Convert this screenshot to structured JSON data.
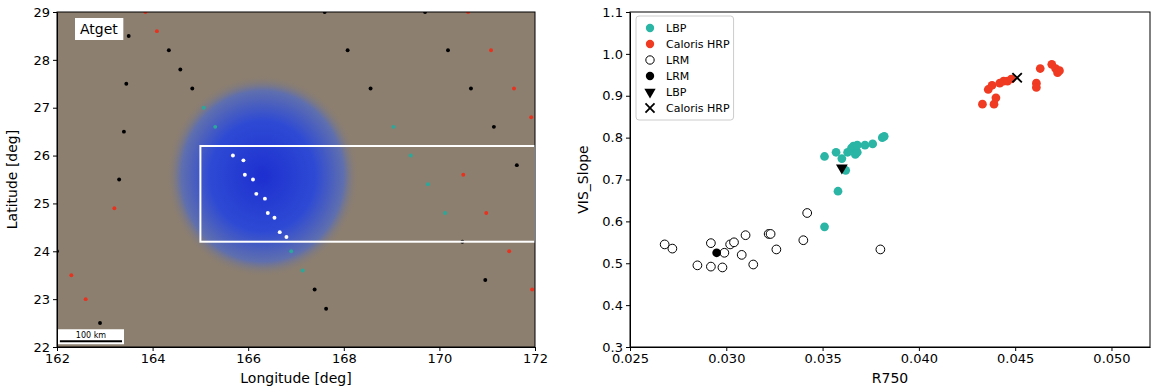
{
  "chart_data": [
    {
      "type": "scatter",
      "annotation": "Atget",
      "xlabel": "Longitude [deg]",
      "ylabel": "Latitude [deg]",
      "xlim": [
        162,
        172
      ],
      "ylim": [
        22,
        29
      ],
      "xticks": [
        162,
        164,
        166,
        168,
        170,
        172
      ],
      "yticks": [
        22,
        23,
        24,
        25,
        26,
        27,
        28,
        29
      ],
      "box": {
        "x": [
          165,
          172
        ],
        "y": [
          24.2,
          26.2
        ]
      },
      "scale_bar": {
        "label": "100 km",
        "x": [
          162.06,
          163.36
        ],
        "y": 22.12
      },
      "series": [
        {
          "color": "#e8321e",
          "marker": "circle",
          "x": [
            163.85,
            164.09,
            170.6,
            171.08,
            171.56,
            171.92,
            170.5,
            170.98,
            171.46,
            171.94,
            162.3,
            162.6,
            163.2
          ],
          "values": [
            29.0,
            28.6,
            29.0,
            28.2,
            27.4,
            26.8,
            25.6,
            24.8,
            24.0,
            23.2,
            23.5,
            23.0,
            24.9
          ]
        },
        {
          "color": "#000000",
          "marker": "circle",
          "x": [
            164.34,
            164.58,
            164.83,
            167.39,
            167.63,
            167.6,
            168.08,
            168.56,
            170.48,
            170.96,
            169.7,
            170.18,
            170.66,
            171.14,
            171.62,
            162.0,
            162.9,
            163.5,
            163.45,
            163.4,
            163.3
          ],
          "values": [
            28.2,
            27.8,
            27.4,
            23.2,
            22.8,
            29.0,
            28.2,
            27.4,
            24.2,
            23.4,
            29.0,
            28.2,
            27.4,
            26.6,
            25.8,
            24.0,
            22.5,
            28.5,
            27.5,
            26.5,
            25.5
          ]
        },
        {
          "color": "#2aa89a",
          "marker": "circle",
          "x": [
            165.07,
            165.31,
            166.9,
            167.14,
            169.04,
            169.4,
            169.76,
            170.12
          ],
          "values": [
            27.0,
            26.6,
            24.0,
            23.6,
            26.6,
            26.0,
            25.4,
            24.8
          ]
        },
        {
          "color": "#ffffff",
          "marker": "circle",
          "x": [
            165.68,
            165.93,
            166.17,
            166.41,
            166.66,
            165.9,
            166.1,
            166.35,
            166.55,
            166.8
          ],
          "values": [
            26.0,
            25.6,
            25.2,
            24.8,
            24.4,
            25.9,
            25.5,
            25.1,
            24.7,
            24.3
          ]
        }
      ]
    },
    {
      "type": "scatter",
      "xlabel": "R750",
      "ylabel": "VIS_Slope",
      "xlim": [
        0.025,
        0.052
      ],
      "ylim": [
        0.3,
        1.1
      ],
      "xticks": [
        0.025,
        {
          "value": 0.03,
          "label": "0.030"
        },
        0.035,
        {
          "value": 0.04,
          "label": "0.040"
        },
        0.045,
        {
          "value": 0.05,
          "label": "0.050"
        }
      ],
      "yticks": [
        0.3,
        0.4,
        0.5,
        0.6,
        0.7,
        0.8,
        0.9,
        {
          "value": 1,
          "label": "1.0"
        },
        1.1
      ],
      "legend": "upper left",
      "series": [
        {
          "name": "LBP",
          "color": "#2ab5a5",
          "marker": "circle",
          "x": [
            0.0351,
            0.0351,
            0.0357,
            0.0358,
            0.036,
            0.0362,
            0.0363,
            0.0365,
            0.0366,
            0.0367,
            0.0368,
            0.0368,
            0.0372,
            0.0376,
            0.0381,
            0.0382
          ],
          "values": [
            0.755,
            0.587,
            0.765,
            0.672,
            0.75,
            0.722,
            0.765,
            0.775,
            0.78,
            0.76,
            0.765,
            0.782,
            0.782,
            0.785,
            0.8,
            0.803
          ]
        },
        {
          "name": "Caloris HRP",
          "color": "#f03a22",
          "marker": "circle",
          "x": [
            0.0433,
            0.0436,
            0.0438,
            0.0439,
            0.044,
            0.0442,
            0.0444,
            0.0446,
            0.0448,
            0.0461,
            0.0461,
            0.0463,
            0.0469,
            0.0471,
            0.0472,
            0.0473
          ],
          "values": [
            0.88,
            0.915,
            0.925,
            0.88,
            0.895,
            0.93,
            0.935,
            0.935,
            0.94,
            0.93,
            0.92,
            0.965,
            0.975,
            0.965,
            0.955,
            0.96
          ]
        },
        {
          "name": "LRM",
          "color": "#000000",
          "marker": "open-circle",
          "x": [
            0.0268,
            0.0272,
            0.0285,
            0.0292,
            0.0292,
            0.0298,
            0.0299,
            0.0302,
            0.0304,
            0.0308,
            0.031,
            0.0314,
            0.0322,
            0.0323,
            0.0326,
            0.034,
            0.0342,
            0.038
          ],
          "values": [
            0.545,
            0.535,
            0.495,
            0.548,
            0.492,
            0.49,
            0.525,
            0.545,
            0.55,
            0.52,
            0.567,
            0.497,
            0.57,
            0.57,
            0.533,
            0.555,
            0.62,
            0.533
          ]
        },
        {
          "name": "LRM",
          "color": "#000000",
          "marker": "circle",
          "x": [
            0.0295
          ],
          "values": [
            0.525
          ]
        },
        {
          "name": "LBP",
          "color": "#000000",
          "marker": "triangle-down",
          "x": [
            0.036
          ],
          "values": [
            0.728
          ]
        },
        {
          "name": "Caloris HRP",
          "color": "#000000",
          "marker": "x",
          "x": [
            0.0451
          ],
          "values": [
            0.943
          ]
        }
      ]
    }
  ]
}
